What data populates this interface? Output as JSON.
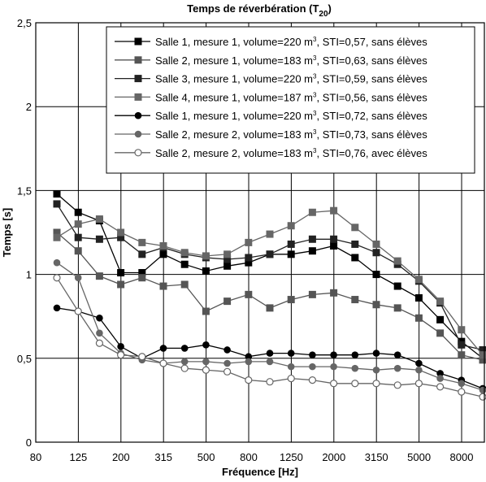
{
  "chart_data": {
    "type": "line",
    "title": "Temps de réverbération (T",
    "title_subscript": "20",
    "title_close": ")",
    "xlabel": "Fréquence [Hz]",
    "ylabel": "Temps [s]",
    "ylim": [
      0,
      2.5
    ],
    "x_tick_labels": [
      "80",
      "125",
      "200",
      "315",
      "500",
      "800",
      "1250",
      "2000",
      "3150",
      "5000",
      "8000"
    ],
    "y_tick_labels": [
      "0",
      "0,5",
      "1",
      "1,5",
      "2",
      "2,5"
    ],
    "y_tick_values": [
      0,
      0.5,
      1,
      1.5,
      2,
      2.5
    ],
    "x": [
      "100",
      "125",
      "160",
      "200",
      "250",
      "315",
      "400",
      "500",
      "630",
      "800",
      "1000",
      "1250",
      "1600",
      "2000",
      "2500",
      "3150",
      "4000",
      "5000",
      "6300",
      "8000",
      "10000"
    ],
    "grid": true,
    "legend_position": "top-right",
    "series": [
      {
        "name": "Salle 1, mesure 1, volume=220 m³, STI=0,57, sans élèves",
        "legend_prefix": "Salle 1, mesure 1, volume=220 m",
        "legend_sup": "3",
        "legend_suffix": ", STI=0,57, sans élèves",
        "color": "#000000",
        "marker": "square",
        "values": [
          1.48,
          1.37,
          1.32,
          1.01,
          1.01,
          1.12,
          1.06,
          1.02,
          1.05,
          1.07,
          1.12,
          1.12,
          1.14,
          1.17,
          1.1,
          1.0,
          0.93,
          0.86,
          0.73,
          0.6,
          0.5
        ]
      },
      {
        "name": "Salle 2, mesure 1, volume=183 m³, STI=0,63, sans élèves",
        "legend_prefix": "Salle 2, mesure 1, volume=183 m",
        "legend_sup": "3",
        "legend_suffix": ", STI=0,63, sans élèves",
        "color": "#555555",
        "marker": "square",
        "values": [
          1.25,
          1.14,
          0.99,
          0.94,
          0.98,
          0.93,
          0.94,
          0.78,
          0.84,
          0.88,
          0.8,
          0.85,
          0.88,
          0.89,
          0.85,
          0.82,
          0.8,
          0.74,
          0.65,
          0.52,
          0.49
        ]
      },
      {
        "name": "Salle 3, mesure 1, volume=220 m³, STI=0,59, sans élèves",
        "legend_prefix": "Salle 3, mesure 1, volume=220 m",
        "legend_sup": "3",
        "legend_suffix": ", STI=0,59, sans élèves",
        "color": "#222222",
        "marker": "square",
        "values": [
          1.42,
          1.22,
          1.21,
          1.22,
          1.12,
          1.16,
          1.12,
          1.1,
          1.09,
          1.1,
          1.12,
          1.18,
          1.21,
          1.21,
          1.18,
          1.13,
          1.06,
          0.96,
          0.83,
          0.58,
          0.55
        ]
      },
      {
        "name": "Salle 4, mesure 1, volume=187 m³, STI=0,56, sans élèves",
        "legend_prefix": "Salle 4, mesure 1, volume=187 m",
        "legend_sup": "3",
        "legend_suffix": ", STI=0,56, sans élèves",
        "color": "#666666",
        "marker": "square",
        "values": [
          1.22,
          1.3,
          1.33,
          1.25,
          1.19,
          1.17,
          1.13,
          1.11,
          1.12,
          1.19,
          1.24,
          1.29,
          1.37,
          1.38,
          1.28,
          1.18,
          1.08,
          0.97,
          0.84,
          0.67,
          0.52
        ]
      },
      {
        "name": "Salle 1, mesure 1, volume=220 m³, STI=0,72, sans élèves",
        "legend_prefix": "Salle 1, mesure 1, volume=220 m",
        "legend_sup": "3",
        "legend_suffix": ", STI=0,72, sans élèves",
        "color": "#000000",
        "marker": "circle",
        "values": [
          0.8,
          0.78,
          0.74,
          0.57,
          0.5,
          0.56,
          0.56,
          0.58,
          0.55,
          0.51,
          0.53,
          0.53,
          0.52,
          0.52,
          0.52,
          0.53,
          0.52,
          0.47,
          0.41,
          0.37,
          0.32
        ]
      },
      {
        "name": "Salle 2, mesure 2, volume=183 m³, STI=0,73, sans élèves",
        "legend_prefix": "Salle 2, mesure 2, volume=183 m",
        "legend_sup": "3",
        "legend_suffix": ", STI=0,73, sans élèves",
        "color": "#666666",
        "marker": "circle",
        "values": [
          1.07,
          0.98,
          0.65,
          0.53,
          0.49,
          0.47,
          0.48,
          0.48,
          0.47,
          0.48,
          0.48,
          0.45,
          0.45,
          0.45,
          0.44,
          0.43,
          0.44,
          0.43,
          0.38,
          0.35,
          0.31
        ]
      },
      {
        "name": "Salle 2, mesure 2, volume=183 m³, STI=0,76, avec élèves",
        "legend_prefix": "Salle 2, mesure 2, volume=183 m",
        "legend_sup": "3",
        "legend_suffix": ", STI=0,76, avec élèves",
        "color": "#666666",
        "marker": "open-circle",
        "values": [
          0.98,
          0.78,
          0.59,
          0.52,
          0.51,
          0.47,
          0.44,
          0.43,
          0.42,
          0.37,
          0.36,
          0.38,
          0.37,
          0.35,
          0.35,
          0.35,
          0.34,
          0.35,
          0.33,
          0.3,
          0.27
        ]
      }
    ]
  }
}
